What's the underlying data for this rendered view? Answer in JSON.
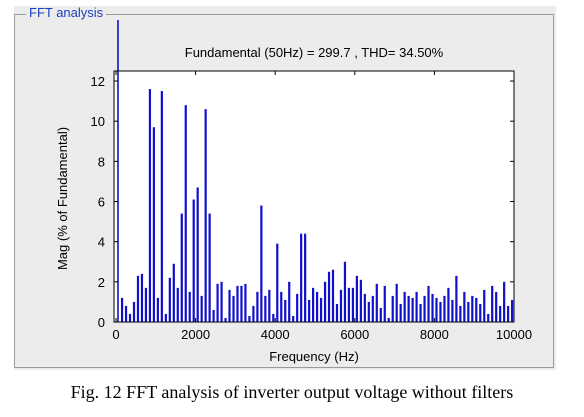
{
  "panel": {
    "title": "FFT analysis"
  },
  "caption": "Fig. 12 FFT analysis of inverter output voltage without filters",
  "colors": {
    "bar": "#1010cc",
    "panel": "#ececec",
    "plot": "#ffffff",
    "title": "#1a3fbf"
  },
  "chart_data": {
    "type": "bar",
    "title": "Fundamental (50Hz) = 299.7 , THD= 34.50%",
    "xlabel": "Frequency (Hz)",
    "ylabel": "Mag (% of Fundamental)",
    "xlim": [
      -50,
      10000
    ],
    "ylim": [
      0,
      12.5
    ],
    "xticks": [
      0,
      2000,
      4000,
      6000,
      8000,
      10000
    ],
    "yticks": [
      0,
      2,
      4,
      6,
      8,
      10,
      12
    ],
    "grid": false,
    "fundamental": {
      "x": 50,
      "y": 100
    },
    "x": [
      150,
      250,
      350,
      450,
      550,
      650,
      750,
      850,
      950,
      1050,
      1150,
      1250,
      1350,
      1450,
      1550,
      1650,
      1750,
      1850,
      1950,
      2050,
      2150,
      2250,
      2350,
      2450,
      2550,
      2650,
      2750,
      2850,
      2950,
      3050,
      3150,
      3250,
      3350,
      3450,
      3550,
      3650,
      3750,
      3850,
      3950,
      4050,
      4150,
      4250,
      4350,
      4450,
      4550,
      4650,
      4750,
      4850,
      4950,
      5050,
      5150,
      5250,
      5350,
      5450,
      5550,
      5650,
      5750,
      5850,
      5950,
      6050,
      6150,
      6250,
      6350,
      6450,
      6550,
      6650,
      6750,
      6850,
      6950,
      7050,
      7150,
      7250,
      7350,
      7450,
      7550,
      7650,
      7750,
      7850,
      7950,
      8050,
      8150,
      8250,
      8350,
      8450,
      8550,
      8650,
      8750,
      8850,
      8950,
      9050,
      9150,
      9250,
      9350,
      9450,
      9550,
      9650,
      9750,
      9850,
      9950
    ],
    "values": [
      1.2,
      0.8,
      0.4,
      1.0,
      2.3,
      2.4,
      1.7,
      11.6,
      9.7,
      1.2,
      11.5,
      0.4,
      2.2,
      2.9,
      1.7,
      5.4,
      10.8,
      1.5,
      6.1,
      6.7,
      1.3,
      10.6,
      5.4,
      0.6,
      1.9,
      2.0,
      0.2,
      1.6,
      1.3,
      1.8,
      1.8,
      1.9,
      0.3,
      0.8,
      1.5,
      5.8,
      1.3,
      1.6,
      0.4,
      3.9,
      1.5,
      1.1,
      2.0,
      0.3,
      1.4,
      4.4,
      4.4,
      1.1,
      1.7,
      1.5,
      1.2,
      2.0,
      2.5,
      2.6,
      0.9,
      1.6,
      3.0,
      1.7,
      1.7,
      2.3,
      2.1,
      1.4,
      1.0,
      1.3,
      1.9,
      0.7,
      1.8,
      0.2,
      1.3,
      1.9,
      0.9,
      1.5,
      1.3,
      1.2,
      1.5,
      0.9,
      1.3,
      1.8,
      1.4,
      1.2,
      1.0,
      1.3,
      1.7,
      1.1,
      2.3,
      0.8,
      1.5,
      1.0,
      1.3,
      1.2,
      0.9,
      1.6,
      0.4,
      1.8,
      1.5,
      0.8,
      2.0,
      0.8,
      1.1
    ]
  }
}
